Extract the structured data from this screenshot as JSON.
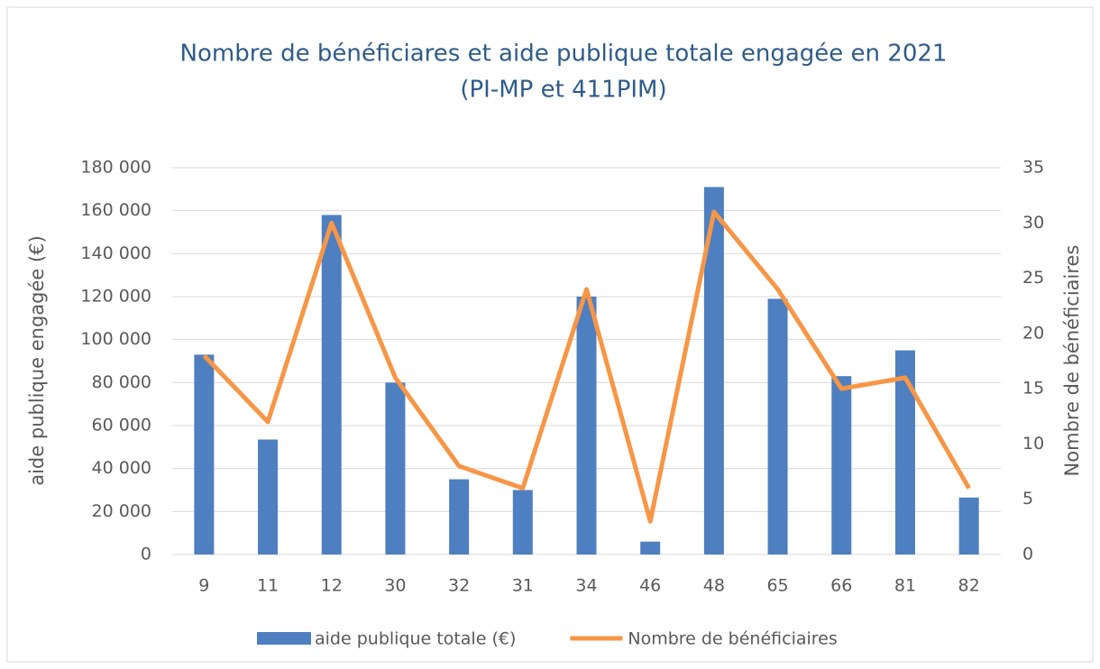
{
  "chart_data": {
    "type": "bar-line",
    "title": [
      "Nombre de bénéficiares et aide publique totale engagée en 2021",
      "(PI-MP et 411PIM)"
    ],
    "y_label": "aide publique engagée (€)",
    "y2_label": "Nombre de bénéficiaires",
    "categories": [
      "9",
      "11",
      "12",
      "30",
      "32",
      "31",
      "34",
      "46",
      "48",
      "65",
      "66",
      "81",
      "82"
    ],
    "series": [
      {
        "name": "aide publique totale (€)",
        "type": "bar",
        "color": "#4e7fc0",
        "values": [
          93000,
          53500,
          158000,
          80000,
          35000,
          30000,
          120000,
          6000,
          171000,
          119000,
          83000,
          95000,
          26500
        ]
      },
      {
        "name": "Nombre de bénéficiaires",
        "type": "line",
        "axis": "y2",
        "color": "#f79646",
        "values": [
          18,
          12,
          30,
          16,
          8,
          6,
          24,
          3,
          31,
          24,
          15,
          16,
          6
        ]
      }
    ],
    "ylim": [
      0,
      180000
    ],
    "yticks": [
      0,
      {
        "value": 20000,
        "label": "20 000"
      },
      {
        "value": 40000,
        "label": "40 000"
      },
      {
        "value": 60000,
        "label": "60 000"
      },
      {
        "value": 80000,
        "label": "80 000"
      },
      {
        "value": 100000,
        "label": "100 000"
      },
      {
        "value": 120000,
        "label": "120 000"
      },
      {
        "value": 140000,
        "label": "140 000"
      },
      {
        "value": 160000,
        "label": "160 000"
      },
      {
        "value": 180000,
        "label": "180 000"
      }
    ],
    "y2lim": [
      0,
      35
    ],
    "y2ticks": [
      0,
      5,
      10,
      15,
      20,
      25,
      30,
      35
    ],
    "grid": true,
    "legend": "bottom"
  }
}
